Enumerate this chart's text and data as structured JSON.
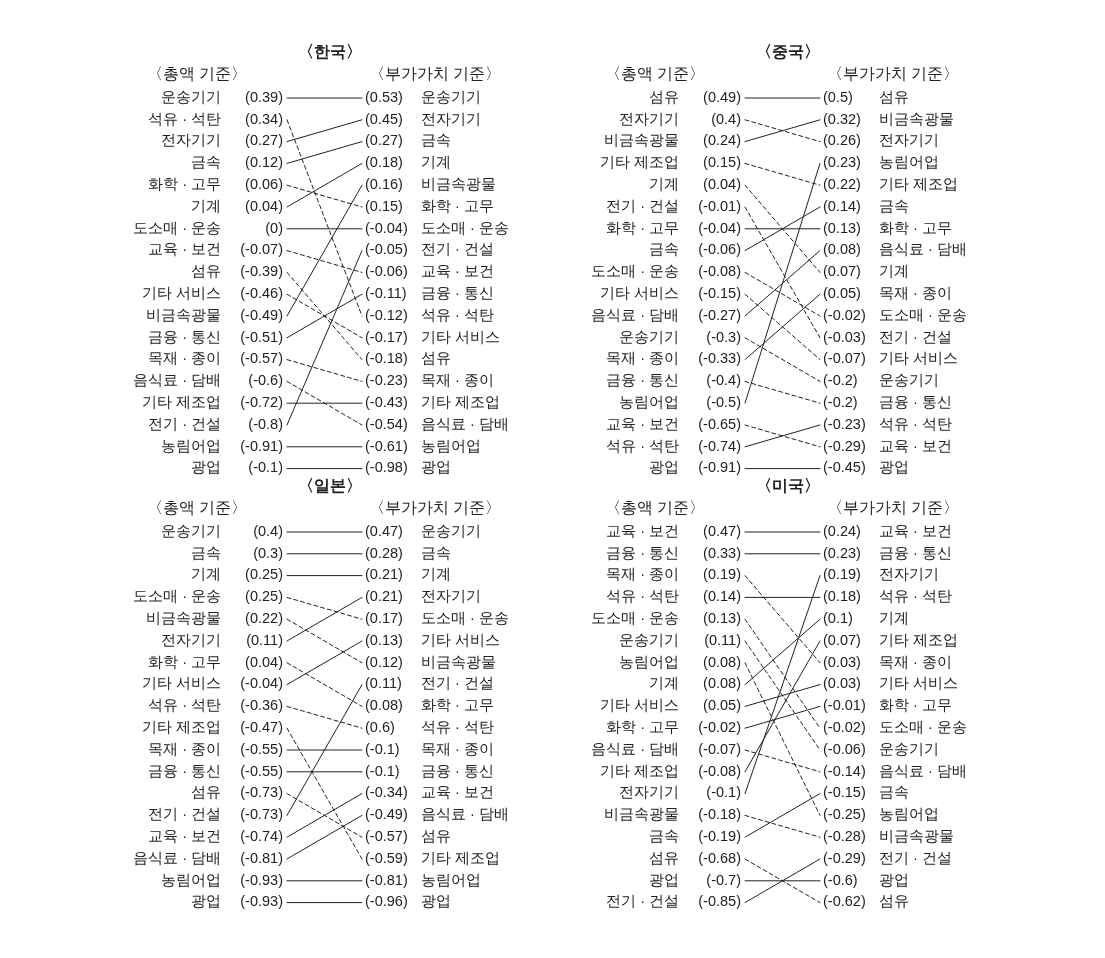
{
  "chart_data": [
    {
      "type": "other",
      "title": "〈한국〉",
      "subtitle": "〈총액 기준〉",
      "categories": [
        "운송기기",
        "석유 · 석탄",
        "전자기기",
        "금속",
        "화학 · 고무",
        "기계",
        "도소매 · 운송",
        "교육 · 보건",
        "섬유",
        "기타 서비스",
        "비금속광물",
        "금융 · 통신",
        "목재 · 종이",
        "음식료 · 담배",
        "기타 제조업",
        "전기 · 건설",
        "농림어업",
        "광업"
      ],
      "values": [
        0.39,
        0.34,
        0.27,
        0.12,
        0.06,
        0.04,
        0,
        -0.07,
        -0.39,
        -0.46,
        -0.49,
        -0.51,
        -0.57,
        -0.6,
        -0.72,
        -0.8,
        -0.91,
        -0.1
      ],
      "value_labels": [
        "(0.39)",
        "(0.34)",
        "(0.27)",
        "(0.12)",
        "(0.06)",
        "(0.04)",
        "(0)",
        "(-0.07)",
        "(-0.39)",
        "(-0.46)",
        "(-0.49)",
        "(-0.51)",
        "(-0.57)",
        "(-0.6)",
        "(-0.72)",
        "(-0.8)",
        "(-0.91)",
        "(-0.1)"
      ]
    },
    {
      "type": "other",
      "subtitle": "〈부가가치 기준〉",
      "categories": [
        "운송기기",
        "전자기기",
        "금속",
        "기계",
        "비금속광물",
        "화학 · 고무",
        "도소매 · 운송",
        "전기 · 건설",
        "교육 · 보건",
        "금융 · 통신",
        "석유 · 석탄",
        "기타 서비스",
        "섬유",
        "목재 · 종이",
        "기타 제조업",
        "음식료 · 담배",
        "농림어업",
        "광업"
      ],
      "values": [
        0.53,
        0.45,
        0.27,
        0.18,
        0.16,
        0.15,
        -0.04,
        -0.05,
        -0.06,
        -0.11,
        -0.12,
        -0.17,
        -0.18,
        -0.23,
        -0.43,
        -0.54,
        -0.61,
        -0.98
      ],
      "value_labels": [
        "(0.53)",
        "(0.45)",
        "(0.27)",
        "(0.18)",
        "(0.16)",
        "(0.15)",
        "(-0.04)",
        "(-0.05)",
        "(-0.06)",
        "(-0.11)",
        "(-0.12)",
        "(-0.17)",
        "(-0.18)",
        "(-0.23)",
        "(-0.43)",
        "(-0.54)",
        "(-0.61)",
        "(-0.98)"
      ]
    },
    {
      "type": "other",
      "title": "〈중국〉",
      "subtitle": "〈총액 기준〉",
      "categories": [
        "섬유",
        "전자기기",
        "비금속광물",
        "기타 제조업",
        "기계",
        "전기 · 건설",
        "화학 · 고무",
        "금속",
        "도소매 · 운송",
        "기타 서비스",
        "음식료 · 담배",
        "운송기기",
        "목재 · 종이",
        "금융 · 통신",
        "농림어업",
        "교육 · 보건",
        "석유 · 석탄",
        "광업"
      ],
      "values": [
        0.49,
        0.4,
        0.24,
        0.15,
        0.04,
        -0.01,
        -0.04,
        -0.06,
        -0.08,
        -0.15,
        -0.27,
        -0.3,
        -0.33,
        -0.4,
        -0.5,
        -0.65,
        -0.74,
        -0.91
      ],
      "value_labels": [
        "(0.49)",
        "(0.4)",
        "(0.24)",
        "(0.15)",
        "(0.04)",
        "(-0.01)",
        "(-0.04)",
        "(-0.06)",
        "(-0.08)",
        "(-0.15)",
        "(-0.27)",
        "(-0.3)",
        "(-0.33)",
        "(-0.4)",
        "(-0.5)",
        "(-0.65)",
        "(-0.74)",
        "(-0.91)"
      ]
    },
    {
      "type": "other",
      "subtitle": "〈부가가치 기준〉",
      "categories": [
        "섬유",
        "비금속광물",
        "전자기기",
        "농림어업",
        "기타 제조업",
        "금속",
        "화학 · 고무",
        "음식료 · 담배",
        "기계",
        "목재 · 종이",
        "도소매 · 운송",
        "전기 · 건설",
        "기타 서비스",
        "운송기기",
        "금융 · 통신",
        "석유 · 석탄",
        "교육 · 보건",
        "광업"
      ],
      "values": [
        0.5,
        0.32,
        0.26,
        0.23,
        0.22,
        0.14,
        0.13,
        0.08,
        0.07,
        0.05,
        -0.02,
        -0.03,
        -0.07,
        -0.2,
        -0.2,
        -0.23,
        -0.29,
        -0.45
      ],
      "value_labels": [
        "(0.5)",
        "(0.32)",
        "(0.26)",
        "(0.23)",
        "(0.22)",
        "(0.14)",
        "(0.13)",
        "(0.08)",
        "(0.07)",
        "(0.05)",
        "(-0.02)",
        "(-0.03)",
        "(-0.07)",
        "(-0.2)",
        "(-0.2)",
        "(-0.23)",
        "(-0.29)",
        "(-0.45)"
      ]
    },
    {
      "type": "other",
      "title": "〈일본〉",
      "subtitle": "〈총액 기준〉",
      "categories": [
        "운송기기",
        "금속",
        "기계",
        "도소매 · 운송",
        "비금속광물",
        "전자기기",
        "화학 · 고무",
        "기타 서비스",
        "석유 · 석탄",
        "기타 제조업",
        "목재 · 종이",
        "금융 · 통신",
        "섬유",
        "전기 · 건설",
        "교육 · 보건",
        "음식료 · 담배",
        "농림어업",
        "광업"
      ],
      "values": [
        0.4,
        0.3,
        0.25,
        0.25,
        0.22,
        0.11,
        0.04,
        -0.04,
        -0.36,
        -0.47,
        -0.55,
        -0.55,
        -0.73,
        -0.73,
        -0.74,
        -0.81,
        -0.93,
        -0.93
      ],
      "value_labels": [
        "(0.4)",
        "(0.3)",
        "(0.25)",
        "(0.25)",
        "(0.22)",
        "(0.11)",
        "(0.04)",
        "(-0.04)",
        "(-0.36)",
        "(-0.47)",
        "(-0.55)",
        "(-0.55)",
        "(-0.73)",
        "(-0.73)",
        "(-0.74)",
        "(-0.81)",
        "(-0.93)",
        "(-0.93)"
      ]
    },
    {
      "type": "other",
      "subtitle": "〈부가가치 기준〉",
      "categories": [
        "운송기기",
        "금속",
        "기계",
        "전자기기",
        "도소매 · 운송",
        "기타 서비스",
        "비금속광물",
        "전기 · 건설",
        "화학 · 고무",
        "석유 · 석탄",
        "목재 · 종이",
        "금융 · 통신",
        "교육 · 보건",
        "음식료 · 담배",
        "섬유",
        "기타 제조업",
        "농림어업",
        "광업"
      ],
      "values": [
        0.47,
        0.28,
        0.21,
        0.21,
        0.17,
        0.13,
        0.12,
        0.11,
        0.08,
        0.6,
        -0.1,
        -0.1,
        -0.34,
        -0.49,
        -0.57,
        -0.59,
        -0.81,
        -0.96
      ],
      "value_labels": [
        "(0.47)",
        "(0.28)",
        "(0.21)",
        "(0.21)",
        "(0.17)",
        "(0.13)",
        "(0.12)",
        "(0.11)",
        "(0.08)",
        "(0.6)",
        "(-0.1)",
        "(-0.1)",
        "(-0.34)",
        "(-0.49)",
        "(-0.57)",
        "(-0.59)",
        "(-0.81)",
        "(-0.96)"
      ]
    },
    {
      "type": "other",
      "title": "〈미국〉",
      "subtitle": "〈총액 기준〉",
      "categories": [
        "교육 · 보건",
        "금융 · 통신",
        "목재 · 종이",
        "석유 · 석탄",
        "도소매 · 운송",
        "운송기기",
        "농림어업",
        "기계",
        "기타 서비스",
        "화학 · 고무",
        "음식료 · 담배",
        "기타 제조업",
        "전자기기",
        "비금속광물",
        "금속",
        "섬유",
        "광업",
        "전기 · 건설"
      ],
      "values": [
        0.47,
        0.33,
        0.19,
        0.14,
        0.13,
        0.11,
        0.08,
        0.08,
        0.05,
        -0.02,
        -0.07,
        -0.08,
        -0.1,
        -0.18,
        -0.19,
        -0.68,
        -0.7,
        -0.85
      ],
      "value_labels": [
        "(0.47)",
        "(0.33)",
        "(0.19)",
        "(0.14)",
        "(0.13)",
        "(0.11)",
        "(0.08)",
        "(0.08)",
        "(0.05)",
        "(-0.02)",
        "(-0.07)",
        "(-0.08)",
        "(-0.1)",
        "(-0.18)",
        "(-0.19)",
        "(-0.68)",
        "(-0.7)",
        "(-0.85)"
      ]
    },
    {
      "type": "other",
      "subtitle": "〈부가가치 기준〉",
      "categories": [
        "교육 · 보건",
        "금융 · 통신",
        "전자기기",
        "석유 · 석탄",
        "기계",
        "기타 제조업",
        "목재 · 종이",
        "기타 서비스",
        "화학 · 고무",
        "도소매 · 운송",
        "운송기기",
        "음식료 · 담배",
        "금속",
        "농림어업",
        "비금속광물",
        "전기 · 건설",
        "광업",
        "섬유"
      ],
      "values": [
        0.24,
        0.23,
        0.19,
        0.18,
        0.1,
        0.07,
        0.03,
        0.03,
        -0.01,
        -0.02,
        -0.06,
        -0.14,
        -0.15,
        -0.25,
        -0.28,
        -0.29,
        -0.6,
        -0.62
      ],
      "value_labels": [
        "(0.24)",
        "(0.23)",
        "(0.19)",
        "(0.18)",
        "(0.1)",
        "(0.07)",
        "(0.03)",
        "(0.03)",
        "(-0.01)",
        "(-0.02)",
        "(-0.06)",
        "(-0.14)",
        "(-0.15)",
        "(-0.25)",
        "(-0.28)",
        "(-0.29)",
        "(-0.6)",
        "(-0.62)"
      ]
    }
  ]
}
